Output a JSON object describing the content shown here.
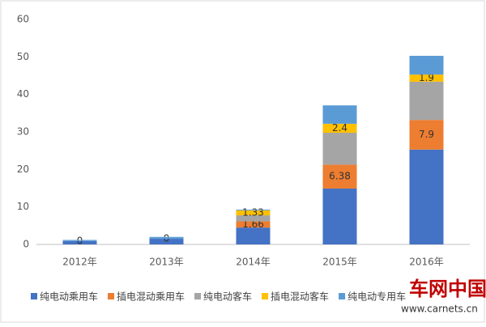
{
  "chart_data": {
    "type": "stacked_bar",
    "categories": [
      "2012年",
      "2013年",
      "2014年",
      "2015年",
      "2016年"
    ],
    "series": [
      {
        "name": "纯电动乘用车",
        "color": "#4472c4",
        "values": [
          0.9,
          1.5,
          4.5,
          14.9,
          25.3
        ]
      },
      {
        "name": "插电混动乘用车",
        "color": "#ed7d31",
        "values": [
          0,
          0,
          1.66,
          6.38,
          7.9
        ],
        "data_labels": true
      },
      {
        "name": "纯电动客车",
        "color": "#a5a5a5",
        "values": [
          null,
          null,
          1.6,
          8.5,
          10.2
        ]
      },
      {
        "name": "插电混动客车",
        "color": "#ffc000",
        "values": [
          null,
          null,
          1.33,
          2.4,
          1.9
        ],
        "data_labels": true
      },
      {
        "name": "纯电动专用车",
        "color": "#5b9bd5",
        "values": [
          0.3,
          0.5,
          0.2,
          4.9,
          5.0
        ]
      }
    ],
    "ylim": [
      0,
      60
    ],
    "yticks": [
      0,
      10,
      20,
      30,
      40,
      50,
      60
    ],
    "grid": false,
    "legend": "bottom",
    "watermark": {
      "title": "车网中国",
      "url": "www.carnets.cn"
    }
  }
}
